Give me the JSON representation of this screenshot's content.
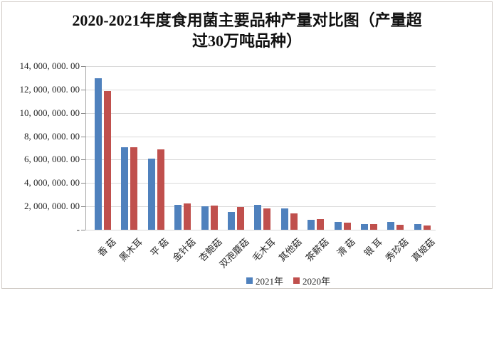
{
  "title": {
    "line1": "2020-2021年度食用菌主要品种产量对比图（产量超",
    "line2": "过30万吨品种）"
  },
  "y_axis": {
    "tick_labels": [
      "14, 000, 000. 00",
      "12, 000, 000. 00",
      "10, 000, 000. 00",
      "8, 000, 000. 00",
      "6, 000, 000. 00",
      "4, 000, 000. 00",
      "2, 000, 000. 00",
      "-"
    ]
  },
  "legend": {
    "items": [
      {
        "label": "2021年",
        "color": "#4F81BD"
      },
      {
        "label": "2020年",
        "color": "#C0504D"
      }
    ]
  },
  "colors": {
    "bar_2021": "#4F81BD",
    "bar_2020": "#C0504D",
    "gridline": "#d9d9d9",
    "axis": "#a6a6a6",
    "text": "#262626"
  },
  "chart_data": {
    "type": "bar",
    "title": "2020-2021年度食用菌主要品种产量对比图（产量超过30万吨品种）",
    "categories": [
      "香 菇",
      "黑木耳",
      "平 菇",
      "金针菇",
      "杏鲍菇",
      "双孢蘑菇",
      "毛木耳",
      "其他菇",
      "茶薪菇",
      "滑 菇",
      "银 耳",
      "秀珍菇",
      "真姬菇"
    ],
    "series": [
      {
        "name": "2021年",
        "color": "#4F81BD",
        "values": [
          12970000,
          7060000,
          6080000,
          2130000,
          2000000,
          1550000,
          2160000,
          1830000,
          850000,
          640000,
          480000,
          690000,
          510000
        ]
      },
      {
        "name": "2020年",
        "color": "#C0504D",
        "values": [
          11890000,
          7090000,
          6850000,
          2250000,
          2050000,
          1960000,
          1800000,
          1400000,
          910000,
          610000,
          500000,
          420000,
          370000
        ]
      }
    ],
    "xlabel": "",
    "ylabel": "",
    "ylim": [
      0,
      14000000
    ],
    "y_tick_step": 2000000,
    "grid": true,
    "legend_position": "bottom"
  }
}
